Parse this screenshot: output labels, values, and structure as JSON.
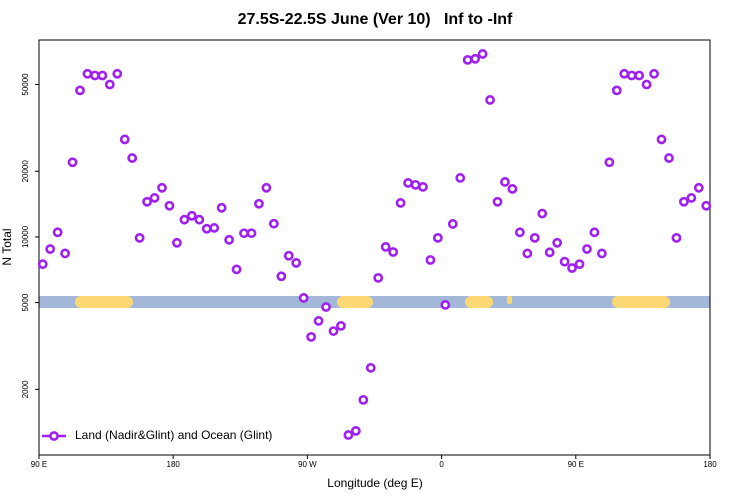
{
  "chart_data": {
    "type": "scatter",
    "title": "27.5S-22.5S June (Ver 10)   Inf to -Inf",
    "x_label": "Longitude (deg E)",
    "y_label": "N Total",
    "log_y": true,
    "grid": false,
    "legend": "bottom-left",
    "xlim": [
      90,
      540
    ],
    "xticks": [
      {
        "value": 90,
        "label": "90 E"
      },
      {
        "value": 180,
        "label": "180"
      },
      {
        "value": 270,
        "label": "90 W"
      },
      {
        "value": 360,
        "label": "0"
      },
      {
        "value": 450,
        "label": "90 E"
      },
      {
        "value": 540,
        "label": "180"
      }
    ],
    "ylim": [
      1000,
      80000
    ],
    "yticks": [
      2000,
      5000,
      10000,
      20000,
      50000
    ],
    "series": [
      {
        "name": "Land (Nadir&Glint) and Ocean (Glint)",
        "color": "#a020f0",
        "x": [
          92.5,
          97.5,
          102.5,
          107.5,
          112.5,
          117.5,
          122.5,
          127.5,
          132.5,
          137.5,
          142.5,
          147.5,
          152.5,
          157.5,
          162.5,
          167.5,
          172.5,
          177.5,
          182.5,
          187.5,
          192.5,
          197.5,
          202.5,
          207.5,
          212.5,
          217.5,
          222.5,
          227.5,
          232.5,
          237.5,
          242.5,
          247.5,
          252.5,
          257.5,
          262.5,
          267.5,
          272.5,
          277.5,
          282.5,
          287.5,
          292.5,
          297.5,
          302.5,
          307.5,
          312.5,
          317.5,
          322.5,
          327.5,
          332.5,
          337.5,
          342.5,
          347.5,
          352.5,
          357.5,
          362.5,
          367.5,
          372.5,
          377.5,
          382.5,
          387.5,
          392.5,
          397.5,
          402.5,
          407.5,
          412.5,
          417.5,
          422.5,
          427.5,
          432.5,
          437.5,
          442.5,
          447.5,
          452.5,
          457.5,
          462.5,
          467.5,
          472.5,
          477.5,
          482.5,
          487.5,
          492.5,
          497.5,
          502.5,
          507.5,
          512.5,
          517.5,
          522.5,
          527.5,
          532.5,
          537.5
        ],
        "values": [
          7500,
          8800,
          10500,
          8400,
          22000,
          47000,
          56000,
          55000,
          55000,
          50000,
          56000,
          28000,
          23000,
          9900,
          14500,
          15100,
          16800,
          13900,
          9400,
          12000,
          12500,
          12000,
          10900,
          11000,
          13600,
          9700,
          7100,
          10400,
          10400,
          14200,
          16800,
          11500,
          6600,
          8200,
          7600,
          5250,
          3480,
          4120,
          4770,
          3700,
          3910,
          1235,
          1290,
          1790,
          2510,
          6490,
          9000,
          8530,
          14320,
          17690,
          17330,
          16960,
          7840,
          9900,
          4880,
          11470,
          18650,
          64860,
          65600,
          69050,
          42490,
          14500,
          17870,
          16600,
          10500,
          8400,
          9900,
          12800,
          8500,
          9400,
          7700,
          7200,
          7500,
          8800,
          10500,
          8400,
          22000,
          47000,
          56000,
          55000,
          55000,
          50000,
          56000,
          28000,
          23000,
          9900,
          14500,
          15100,
          16800,
          13900
        ]
      }
    ]
  }
}
